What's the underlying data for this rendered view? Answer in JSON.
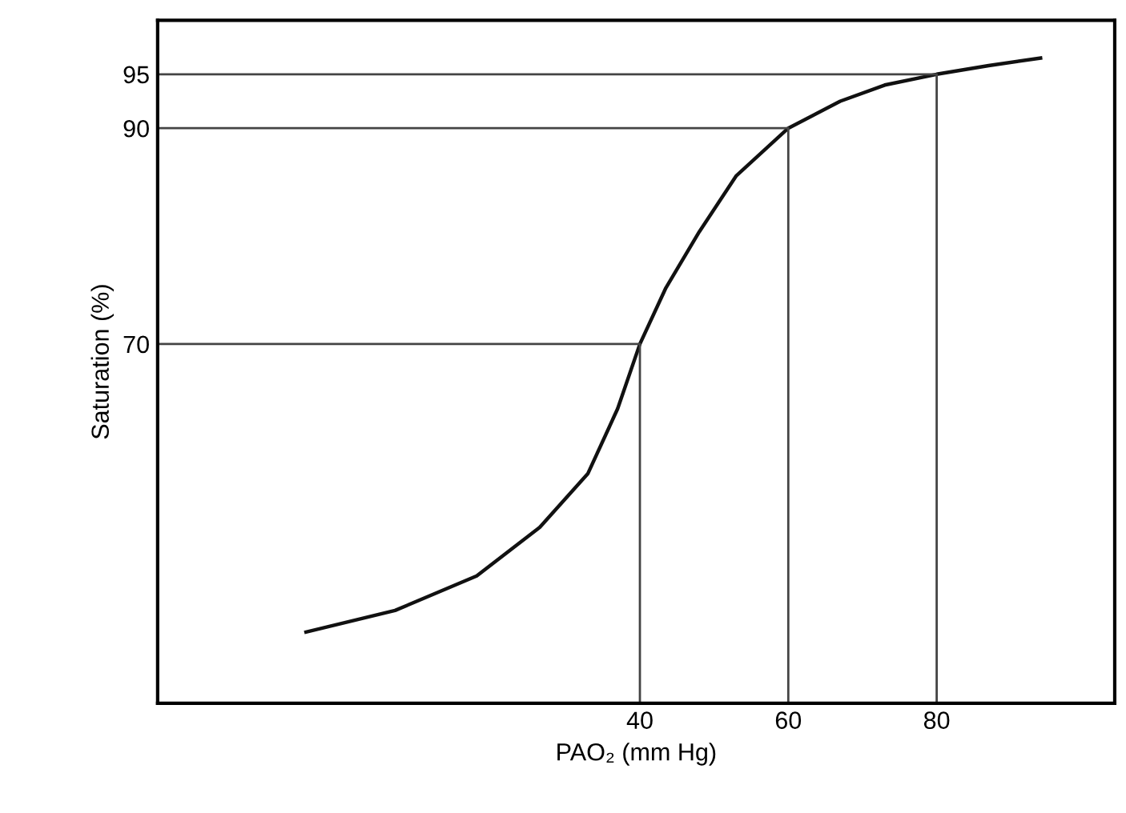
{
  "chart_data": {
    "type": "line",
    "xlabel": "PAO₂ (mm Hg)",
    "ylabel": "Saturation (%)",
    "xlim": [
      -25,
      104
    ],
    "ylim": [
      36.7,
      100
    ],
    "xticks": [
      40,
      60,
      80
    ],
    "yticks": [
      70,
      90,
      95
    ],
    "grid": false,
    "marker": "none",
    "line_style": "solid",
    "series": [
      {
        "color": "#111111",
        "x": [
          -5,
          7,
          18,
          26.5,
          33,
          37,
          40,
          43.5,
          48,
          53,
          60,
          67,
          73,
          80,
          87,
          94
        ],
        "values": [
          43.3,
          45.3,
          48.5,
          53,
          58,
          64,
          70,
          75.2,
          80.4,
          85.6,
          90,
          92.5,
          94,
          95,
          95.8,
          96.5
        ]
      },
      {
        "color": "#444444",
        "x": [
          -25,
          40,
          40
        ],
        "values": [
          70,
          70,
          36.7
        ]
      },
      {
        "color": "#444444",
        "x": [
          -25,
          60,
          60
        ],
        "values": [
          90,
          90,
          36.7
        ]
      },
      {
        "color": "#444444",
        "x": [
          -25,
          80,
          80
        ],
        "values": [
          95,
          95,
          36.7
        ]
      }
    ]
  }
}
